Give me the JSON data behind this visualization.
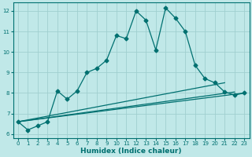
{
  "xlabel": "Humidex (Indice chaleur)",
  "bg_color": "#c0e8e8",
  "grid_color": "#a0cfcf",
  "line_color": "#007070",
  "xlim": [
    -0.5,
    23.5
  ],
  "ylim": [
    5.8,
    12.4
  ],
  "xticks": [
    0,
    1,
    2,
    3,
    4,
    5,
    6,
    7,
    8,
    9,
    10,
    11,
    12,
    13,
    14,
    15,
    16,
    17,
    18,
    19,
    20,
    21,
    22,
    23
  ],
  "yticks": [
    6,
    7,
    8,
    9,
    10,
    11,
    12
  ],
  "line1_x": [
    0,
    1,
    2,
    3,
    4,
    5,
    6,
    7,
    8,
    9,
    10,
    11,
    12,
    13,
    14,
    15,
    16,
    17,
    18,
    19,
    20,
    21,
    22,
    23
  ],
  "line1_y": [
    6.6,
    6.2,
    6.4,
    6.6,
    8.1,
    7.7,
    8.1,
    9.0,
    9.2,
    9.6,
    10.8,
    10.65,
    12.0,
    11.55,
    10.1,
    12.15,
    11.65,
    11.0,
    9.35,
    8.7,
    8.5,
    8.05,
    7.9,
    8.0
  ],
  "line2_x": [
    0,
    21
  ],
  "line2_y": [
    6.6,
    8.5
  ],
  "line3_x": [
    0,
    22
  ],
  "line3_y": [
    6.6,
    8.05
  ],
  "line4_x": [
    0,
    23
  ],
  "line4_y": [
    6.6,
    8.0
  ]
}
